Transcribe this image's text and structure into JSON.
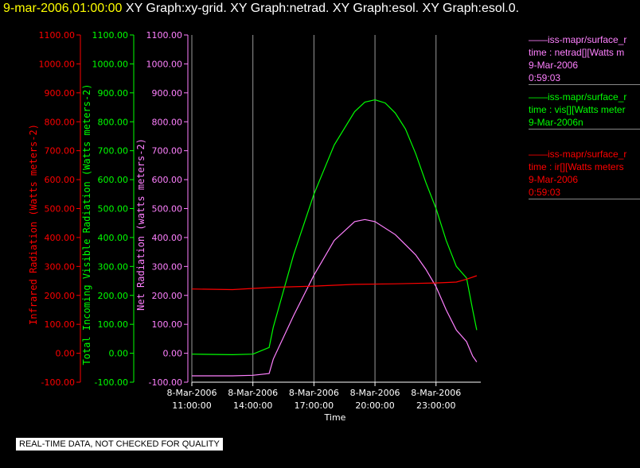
{
  "header": {
    "timestamp": "9-mar-2006,01:00:00",
    "graphs": "XY Graph:xy-grid.  XY Graph:netrad.  XY Graph:esol.  XY Graph:esol.0."
  },
  "notice": "REAL-TIME DATA, NOT CHECKED FOR QUALITY",
  "legend": [
    {
      "line1": "——iss-mapr/surface_r",
      "line2": "time : netrad[][Watts m",
      "line3": "9-Mar-2006",
      "line4": "0:59:03",
      "color": "#ff80ff"
    },
    {
      "line1": "——iss-mapr/surface_r",
      "line2": "time : vis[][Watts meter",
      "line3": "9-Mar-2006n",
      "line4": "",
      "color": "#00ff00"
    },
    {
      "line1": "——iss-mapr/surface_r",
      "line2": "time : ir[][Watts meters",
      "line3": "9-Mar-2006",
      "line4": "0:59:03",
      "color": "#ff0000"
    }
  ],
  "chart_data": {
    "type": "line",
    "xlabel": "Time",
    "x_ticks": [
      {
        "date": "8-Mar-2006",
        "time": "11:00:00",
        "hours": 11
      },
      {
        "date": "8-Mar-2006",
        "time": "14:00:00",
        "hours": 14
      },
      {
        "date": "8-Mar-2006",
        "time": "17:00:00",
        "hours": 17
      },
      {
        "date": "8-Mar-2006",
        "time": "20:00:00",
        "hours": 20
      },
      {
        "date": "8-Mar-2006",
        "time": "23:00:00",
        "hours": 23
      }
    ],
    "x_unit": "hours since 8-Mar-2006 00:00",
    "xlim": [
      11,
      25.2
    ],
    "ylim": [
      -100,
      1100
    ],
    "y_ticks": [
      "-100.00",
      "0.00",
      "100.00",
      "200.00",
      "300.00",
      "400.00",
      "500.00",
      "600.00",
      "700.00",
      "800.00",
      "900.00",
      "1000.00",
      "1100.00"
    ],
    "y_axes": [
      {
        "label": "Infrared Radiation (Watts meters-2)",
        "color": "#ff0000"
      },
      {
        "label": "Total Incoming Visible Radiation (Watts meters-2)",
        "color": "#00ff00"
      },
      {
        "label": "Net Radiation (watts meters-2)",
        "color": "#ff80ff"
      }
    ],
    "grid": "vertical",
    "series": [
      {
        "color": "#00ff00",
        "x": [
          11,
          13,
          14,
          14.8,
          15,
          16,
          17,
          18,
          19,
          19.5,
          20,
          20.5,
          21,
          21.5,
          22,
          22.5,
          23,
          23.5,
          24,
          24.5,
          24.8,
          25
        ],
        "y": [
          -3,
          -5,
          -3,
          20,
          90,
          340,
          550,
          720,
          835,
          868,
          876,
          865,
          830,
          775,
          690,
          590,
          500,
          390,
          300,
          260,
          150,
          80
        ]
      },
      {
        "color": "#ff80ff",
        "x": [
          11,
          13,
          14,
          14.8,
          15,
          16,
          17,
          18,
          19,
          19.5,
          20,
          21,
          22,
          22.5,
          23,
          23.5,
          24,
          24.5,
          24.8,
          25
        ],
        "y": [
          -78,
          -78,
          -76,
          -70,
          -20,
          130,
          270,
          390,
          455,
          462,
          455,
          410,
          340,
          290,
          230,
          150,
          80,
          40,
          -10,
          -30
        ]
      },
      {
        "color": "#ff0000",
        "x": [
          11,
          13,
          14,
          15,
          17,
          19,
          21,
          23,
          24,
          24.5,
          25
        ],
        "y": [
          222,
          220,
          224,
          228,
          232,
          238,
          240,
          243,
          246,
          256,
          268
        ]
      }
    ]
  }
}
